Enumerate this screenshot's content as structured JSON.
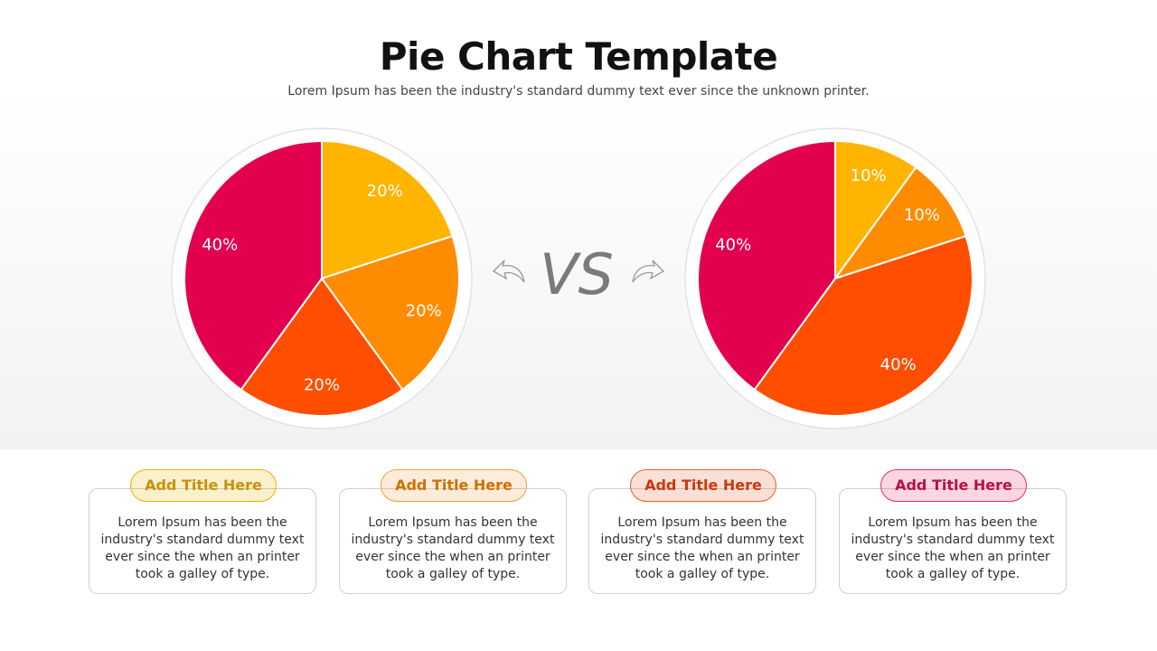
{
  "title": "Pie Chart Template",
  "subtitle": "Lorem Ipsum has been the industry's standard dummy text ever since the unknown printer.",
  "vs_label": "VS",
  "chart_data": [
    {
      "type": "pie",
      "values": [
        20,
        20,
        20,
        40
      ],
      "value_labels": [
        "20%",
        "20%",
        "20%",
        "40%"
      ],
      "colors": [
        "#FFB400",
        "#FF8C00",
        "#FF4E00",
        "#E3004F"
      ]
    },
    {
      "type": "pie",
      "values": [
        10,
        10,
        40,
        40
      ],
      "value_labels": [
        "10%",
        "10%",
        "40%",
        "40%"
      ],
      "colors": [
        "#FFB400",
        "#FF8C00",
        "#FF4E00",
        "#E3004F"
      ]
    }
  ],
  "cards": [
    {
      "title": "Add Title Here",
      "text": "Lorem Ipsum has been the industry's standard dummy text ever since the when an printer took a galley of type.",
      "color": "#E8B400",
      "text_color": "#C8930A"
    },
    {
      "title": "Add Title Here",
      "text": "Lorem Ipsum has been the industry's standard dummy text ever since the when an printer took a galley of type.",
      "color": "#F0A040",
      "text_color": "#D07000"
    },
    {
      "title": "Add Title Here",
      "text": "Lorem Ipsum has been the industry's standard dummy text ever since the when an printer took a galley of type.",
      "color": "#E86030",
      "text_color": "#C83A10"
    },
    {
      "title": "Add Title Here",
      "text": "Lorem Ipsum has been the industry's standard dummy text ever since the when an printer took a galley of type.",
      "color": "#E0306A",
      "text_color": "#B8104A"
    }
  ]
}
